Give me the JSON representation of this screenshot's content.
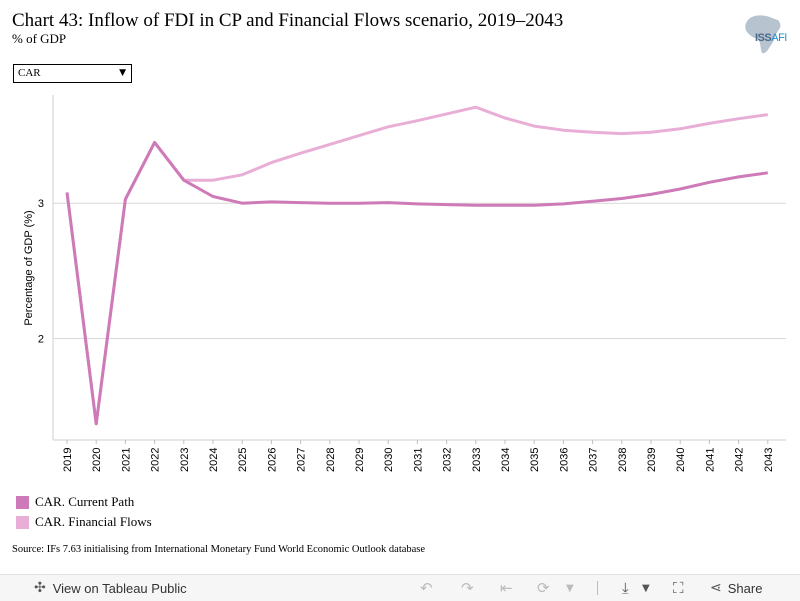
{
  "header": {
    "title": "Chart 43: Inflow of FDI in CP and Financial Flows scenario, 2019–2043",
    "subtitle": "% of GDP"
  },
  "logo": {
    "text_main": "ISS",
    "text_accent": "AFI"
  },
  "filter": {
    "selected": "CAR"
  },
  "chart_data": {
    "type": "line",
    "title": "Chart 43: Inflow of FDI in CP and Financial Flows scenario, 2019–2043",
    "subtitle": "% of GDP",
    "xlabel": "",
    "ylabel": "Percentage of GDP (%)",
    "x": [
      "2019",
      "2020",
      "2021",
      "2022",
      "2023",
      "2024",
      "2025",
      "2026",
      "2027",
      "2028",
      "2029",
      "2030",
      "2031",
      "2032",
      "2033",
      "2034",
      "2035",
      "2036",
      "2037",
      "2038",
      "2039",
      "2040",
      "2041",
      "2042",
      "2043"
    ],
    "yticks": [
      2,
      3
    ],
    "ylim": [
      1.25,
      3.8
    ],
    "grid": true,
    "legend_position": "bottom-left",
    "series": [
      {
        "name": "CAR. Current Path",
        "color": "#cf7ab8",
        "values": [
          3.08,
          1.37,
          3.03,
          3.45,
          3.17,
          3.05,
          3.0,
          3.01,
          3.005,
          3.0,
          3.0,
          3.005,
          2.995,
          2.99,
          2.985,
          2.985,
          2.985,
          2.995,
          3.015,
          3.035,
          3.065,
          3.105,
          3.155,
          3.195,
          3.225
        ]
      },
      {
        "name": "CAR. Financial Flows",
        "color": "#e8aed6",
        "values": [
          3.08,
          1.37,
          3.03,
          3.45,
          3.17,
          3.17,
          3.21,
          3.3,
          3.37,
          3.435,
          3.5,
          3.565,
          3.61,
          3.66,
          3.71,
          3.63,
          3.57,
          3.54,
          3.525,
          3.515,
          3.525,
          3.55,
          3.59,
          3.625,
          3.655
        ]
      }
    ]
  },
  "legend": {
    "items": [
      {
        "label": "CAR. Current Path",
        "color": "#cf7ab8"
      },
      {
        "label": "CAR. Financial Flows",
        "color": "#e8aed6"
      }
    ]
  },
  "source": "Source: IFs 7.63 initialising from International Monetary Fund World Economic Outlook database",
  "toolbar": {
    "view_label": "View on Tableau Public",
    "share_label": "Share"
  }
}
